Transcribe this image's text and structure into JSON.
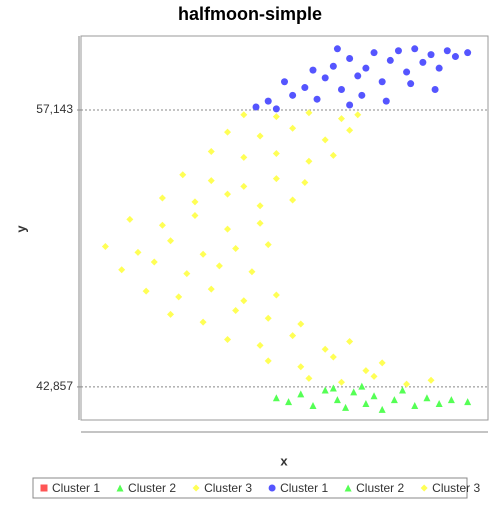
{
  "chart_data": {
    "type": "scatter",
    "title": "halfmoon-simple",
    "x_label": "x",
    "y_label": "y",
    "xlim": [
      0,
      100
    ],
    "ylim": [
      41150,
      60960
    ],
    "yticks": [
      {
        "value": 42857,
        "label": "42,857"
      },
      {
        "value": 57143,
        "label": "57,143"
      }
    ],
    "grid": true,
    "legend": "bottom",
    "series": [
      {
        "name": "Cluster 1",
        "color": "#ff5555",
        "marker": "square",
        "x": [],
        "values": []
      },
      {
        "name": "Cluster 2",
        "color": "#55ff55",
        "marker": "triangle",
        "x": [],
        "values": []
      },
      {
        "name": "Cluster 3",
        "color": "#ffff55",
        "marker": "diamond",
        "x": [],
        "values": []
      },
      {
        "name": "Cluster 1",
        "color": "#5555ff",
        "marker": "circle",
        "x": [
          43,
          46,
          48,
          52,
          55,
          58,
          60,
          62,
          64,
          66,
          68,
          70,
          72,
          74,
          76,
          78,
          80,
          82,
          84,
          86,
          88,
          90,
          92,
          95,
          57,
          63,
          69,
          75,
          81,
          50,
          66,
          87
        ],
        "values": [
          57300,
          57600,
          57200,
          57900,
          58300,
          57700,
          58800,
          59400,
          58200,
          59800,
          58900,
          59300,
          60100,
          58600,
          59700,
          60200,
          59100,
          60300,
          59600,
          60000,
          59300,
          60200,
          59900,
          60100,
          59200,
          60300,
          57900,
          57600,
          58500,
          58600,
          57400,
          58200
        ]
      },
      {
        "name": "Cluster 2",
        "color": "#55ff55",
        "marker": "triangle",
        "x": [
          48,
          51,
          54,
          57,
          60,
          63,
          65,
          67,
          70,
          72,
          74,
          77,
          79,
          82,
          85,
          88,
          91,
          95,
          69,
          62
        ],
        "values": [
          42300,
          42100,
          42500,
          41900,
          42700,
          42200,
          41800,
          42600,
          42000,
          42400,
          41700,
          42200,
          42700,
          41900,
          42300,
          42000,
          42200,
          42100,
          42900,
          42800
        ]
      },
      {
        "name": "Cluster 3",
        "color": "#ffff55",
        "marker": "diamond",
        "x": [
          40,
          48,
          56,
          64,
          68,
          36,
          44,
          52,
          60,
          66,
          32,
          40,
          48,
          56,
          62,
          25,
          32,
          40,
          48,
          55,
          20,
          28,
          36,
          44,
          52,
          12,
          20,
          28,
          36,
          44,
          6,
          14,
          22,
          30,
          38,
          46,
          10,
          18,
          26,
          34,
          42,
          16,
          24,
          32,
          40,
          48,
          22,
          30,
          38,
          46,
          54,
          36,
          44,
          52,
          60,
          66,
          46,
          54,
          62,
          70,
          74,
          56,
          64,
          72,
          80,
          86
        ],
        "values": [
          56900,
          56800,
          57000,
          56700,
          56900,
          56000,
          55800,
          56200,
          55600,
          56100,
          55000,
          54700,
          54900,
          54500,
          54800,
          53800,
          53500,
          53200,
          53600,
          53400,
          52600,
          52400,
          52800,
          52200,
          52500,
          51500,
          51200,
          51700,
          51000,
          51300,
          50100,
          49800,
          50400,
          49700,
          50000,
          50200,
          48900,
          49300,
          48700,
          49100,
          48800,
          47800,
          47500,
          47900,
          47300,
          47600,
          46600,
          46200,
          46800,
          46400,
          46100,
          45300,
          45000,
          45500,
          44800,
          45200,
          44200,
          43900,
          44400,
          43700,
          44100,
          43300,
          43100,
          43400,
          43000,
          43200
        ]
      }
    ]
  }
}
